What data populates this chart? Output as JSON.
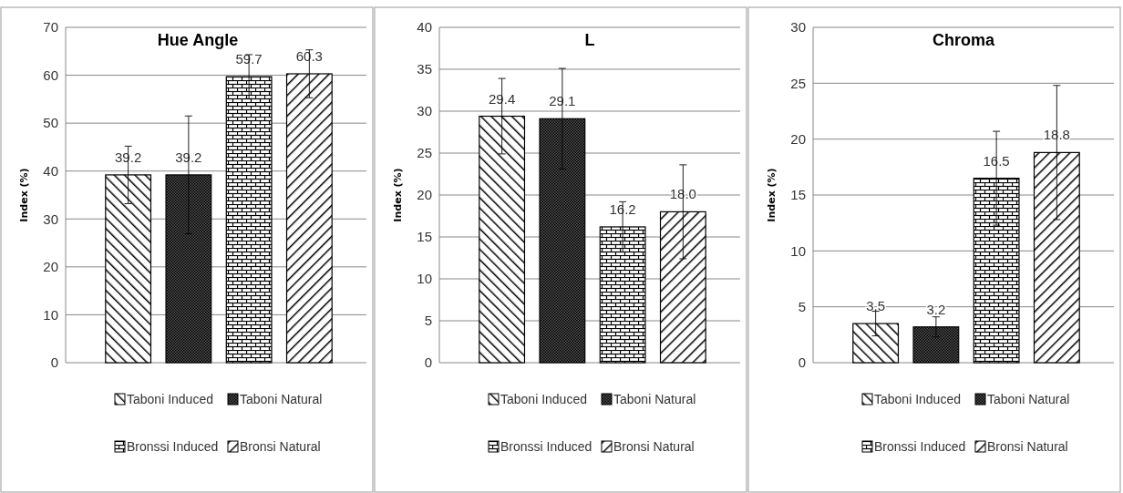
{
  "chart_data": [
    {
      "type": "bar",
      "title": "Hue Angle",
      "ylabel": "Index (%)",
      "categories": [
        null
      ],
      "ylim": [
        0,
        70
      ],
      "yticks": [
        0,
        10,
        20,
        30,
        40,
        50,
        60,
        70
      ],
      "grid": "y",
      "legend": "bottom",
      "series": [
        {
          "name": "Taboni Induced",
          "color": "#000000",
          "values": [
            39.2
          ],
          "errors": [
            6
          ],
          "value_labels": [
            "39.2"
          ]
        },
        {
          "name": "Taboni Natural",
          "color": "#000000",
          "values": [
            39.2
          ],
          "errors": [
            12.3
          ],
          "value_labels": [
            "39.2"
          ]
        },
        {
          "name": "Bronssi Induced",
          "color": "#000000",
          "values": [
            59.7
          ],
          "errors": [
            4.6
          ],
          "value_labels": [
            "59.7"
          ]
        },
        {
          "name": "Bronsi Natural",
          "color": "#000000",
          "values": [
            60.3
          ],
          "errors": [
            5
          ],
          "value_labels": [
            "60.3"
          ]
        }
      ]
    },
    {
      "type": "bar",
      "title": "L",
      "ylabel": "Index (%)",
      "categories": [
        null
      ],
      "ylim": [
        0,
        40
      ],
      "yticks": [
        0,
        5,
        10,
        15,
        20,
        25,
        30,
        35,
        40
      ],
      "grid": "y",
      "legend": "bottom",
      "series": [
        {
          "name": "Taboni Induced",
          "color": "#000000",
          "values": [
            29.4
          ],
          "errors": [
            4.5
          ],
          "value_labels": [
            "29.4"
          ]
        },
        {
          "name": "Taboni Natural",
          "color": "#000000",
          "values": [
            29.1
          ],
          "errors": [
            6
          ],
          "value_labels": [
            "29.1"
          ]
        },
        {
          "name": "Bronssi Induced",
          "color": "#000000",
          "values": [
            16.2
          ],
          "errors": [
            3
          ],
          "value_labels": [
            "16.2"
          ]
        },
        {
          "name": "Bronsi Natural",
          "color": "#000000",
          "values": [
            18.0
          ],
          "errors": [
            5.6
          ],
          "value_labels": [
            "18.0"
          ]
        }
      ]
    },
    {
      "type": "bar",
      "title": "Chroma",
      "ylabel": "Index (%)",
      "categories": [
        null
      ],
      "ylim": [
        0,
        30
      ],
      "yticks": [
        0,
        5,
        10,
        15,
        20,
        25,
        30
      ],
      "grid": "y",
      "legend": "bottom",
      "series": [
        {
          "name": "Taboni Induced",
          "color": "#000000",
          "values": [
            3.5
          ],
          "errors": [
            1.1
          ],
          "value_labels": [
            "3.5"
          ]
        },
        {
          "name": "Taboni Natural",
          "color": "#000000",
          "values": [
            3.2
          ],
          "errors": [
            0.9
          ],
          "value_labels": [
            "3.2"
          ]
        },
        {
          "name": "Bronssi Induced",
          "color": "#000000",
          "values": [
            16.5
          ],
          "errors": [
            4.2
          ],
          "value_labels": [
            "16.5"
          ]
        },
        {
          "name": "Bronsi Natural",
          "color": "#000000",
          "values": [
            18.8
          ],
          "errors": [
            6
          ],
          "value_labels": [
            "18.8"
          ]
        }
      ]
    }
  ]
}
